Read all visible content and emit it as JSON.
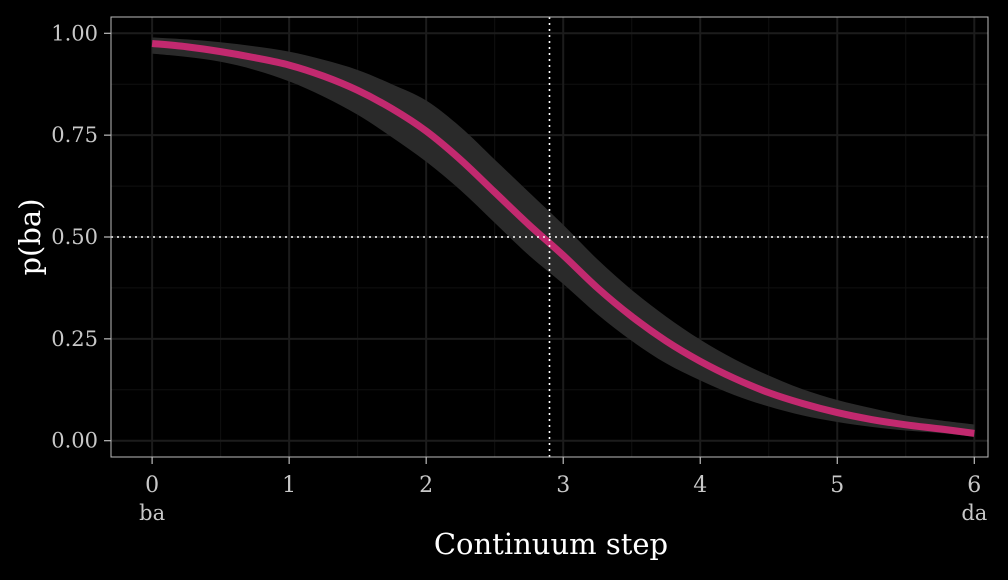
{
  "chart_data": {
    "type": "line",
    "title": "",
    "xlabel": "Continuum step",
    "ylabel": "p(ba)",
    "xlim": [
      -0.3,
      6.1
    ],
    "ylim": [
      -0.04,
      1.04
    ],
    "x_ticks": [
      0,
      1,
      2,
      3,
      4,
      5,
      6
    ],
    "x_tick_labels": [
      "0",
      "1",
      "2",
      "3",
      "4",
      "5",
      "6"
    ],
    "x_endpoint_labels": [
      {
        "x": 0,
        "label": "ba"
      },
      {
        "x": 6,
        "label": "da"
      }
    ],
    "y_ticks": [
      0,
      0.25,
      0.5,
      0.75,
      1
    ],
    "y_tick_labels": [
      "0.00",
      "0.25",
      "0.50",
      "0.75",
      "1.00"
    ],
    "grid": true,
    "reference_lines": [
      {
        "axis": "x",
        "value": 2.9,
        "style": "dotted"
      },
      {
        "axis": "y",
        "value": 0.5,
        "style": "dotted"
      }
    ],
    "series": [
      {
        "x": [
          0,
          0.25,
          0.5,
          0.75,
          1,
          1.25,
          1.5,
          1.75,
          2,
          2.25,
          2.5,
          2.75,
          3,
          3.25,
          3.5,
          3.75,
          4,
          4.25,
          4.5,
          4.75,
          5,
          5.25,
          5.5,
          5.75,
          6
        ],
        "y": [
          0.975,
          0.967,
          0.955,
          0.94,
          0.922,
          0.895,
          0.86,
          0.815,
          0.76,
          0.69,
          0.61,
          0.53,
          0.455,
          0.375,
          0.305,
          0.245,
          0.195,
          0.153,
          0.118,
          0.091,
          0.069,
          0.052,
          0.039,
          0.029,
          0.018
        ],
        "lower": [
          0.95,
          0.942,
          0.93,
          0.91,
          0.882,
          0.845,
          0.8,
          0.745,
          0.685,
          0.615,
          0.535,
          0.455,
          0.385,
          0.31,
          0.245,
          0.19,
          0.148,
          0.112,
          0.084,
          0.062,
          0.046,
          0.034,
          0.025,
          0.019,
          0.01
        ],
        "upper": [
          0.99,
          0.985,
          0.978,
          0.968,
          0.955,
          0.935,
          0.91,
          0.875,
          0.835,
          0.77,
          0.69,
          0.61,
          0.53,
          0.445,
          0.37,
          0.305,
          0.248,
          0.2,
          0.16,
          0.126,
          0.1,
          0.08,
          0.062,
          0.05,
          0.04
        ]
      }
    ]
  },
  "colors": {
    "background": "#000000",
    "panel": "#000000",
    "grid_major": "#1c1c1c",
    "grid_minor": "#101010",
    "border": "#bdbdbd",
    "tick_text": "#c8c8c8",
    "axis_title": "#ffffff",
    "ribbon": "#2a2a2a",
    "line": "#c2296f",
    "reference_line": "#ffffff"
  }
}
